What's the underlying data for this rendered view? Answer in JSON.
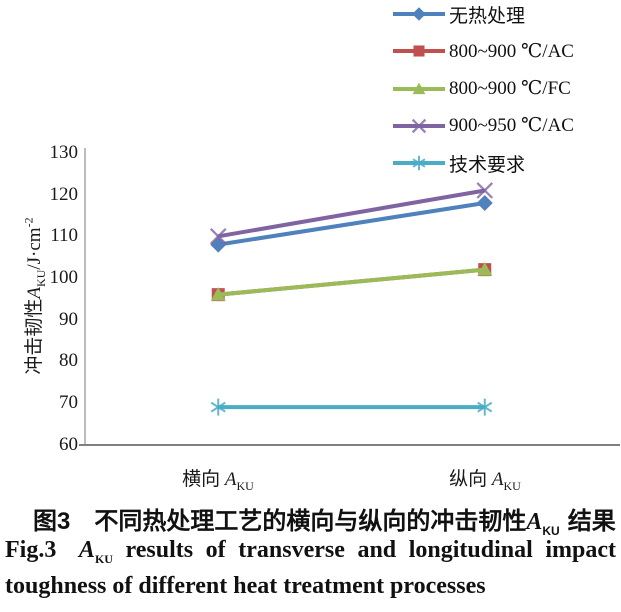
{
  "figure": {
    "caption_cn": {
      "fig_no": "图3",
      "text": "不同热处理工艺的横向与纵向的冲击韧性",
      "symbol": "A",
      "symbol_sub": "KU",
      "tail": "结果"
    },
    "caption_en": {
      "fig_no": "Fig.3",
      "symbol": "A",
      "symbol_sub": "KU",
      "line1_rest": "results of transverse and longitudinal impact",
      "line2": "toughness of different heat treatment processes"
    }
  },
  "chart_data": {
    "type": "line",
    "title": "图3 不同热处理工艺的横向与纵向的冲击韧性AKU结果",
    "categories": [
      "横向 A_KU",
      "纵向 A_KU"
    ],
    "categories_rich": [
      {
        "text": "横向",
        "symbol": "A",
        "sub": "KU"
      },
      {
        "text": "纵向",
        "symbol": "A",
        "sub": "KU"
      }
    ],
    "ylabel": "冲击韧性 A_KU /J·cm^-2",
    "ylabel_rich": {
      "prefix": "冲击韧性",
      "symbol": "A",
      "sub": "KU",
      "unit": "/J·cm",
      "unit_sup": "-2"
    },
    "ylim": [
      60,
      130
    ],
    "yticks": [
      130,
      120,
      110,
      100,
      90,
      80,
      70,
      60
    ],
    "grid": false,
    "legend_position": "top-right",
    "axis_color": "#8c8c8c",
    "series": [
      {
        "name": "无热处理",
        "color": "#4F81BD",
        "marker": "diamond",
        "values": [
          108,
          118
        ]
      },
      {
        "name": "800~900 ℃/AC",
        "color": "#C0504D",
        "marker": "square",
        "values": [
          96,
          102
        ]
      },
      {
        "name": "800~900 ℃/FC",
        "color": "#9BBB59",
        "marker": "triangle",
        "values": [
          96,
          102
        ]
      },
      {
        "name": "900~950 ℃/AC",
        "color": "#8064A2",
        "marker": "x",
        "values": [
          110,
          121
        ]
      },
      {
        "name": "技术要求",
        "color": "#4BACC6",
        "marker": "asterisk",
        "values": [
          69,
          69
        ]
      }
    ]
  }
}
